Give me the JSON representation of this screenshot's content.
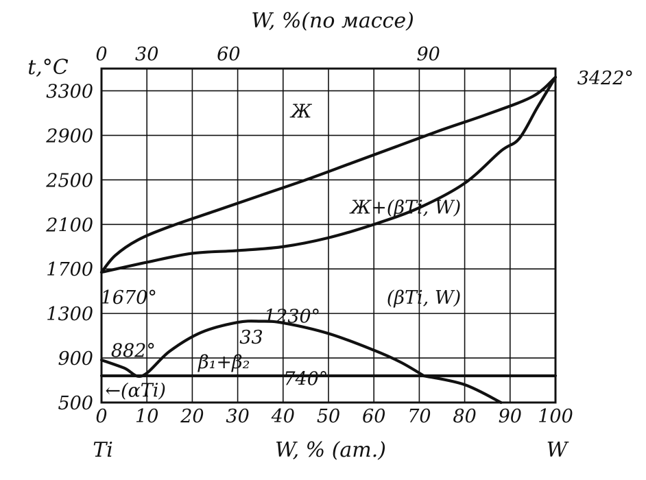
{
  "chart_data": {
    "type": "line",
    "title": "",
    "xlabel": "W, % (am.)",
    "ylabel": "t,°C",
    "top_xlabel": "W, %(по массе)",
    "xlim": [
      0,
      100
    ],
    "ylim": [
      500,
      3500
    ],
    "x_ticks": [
      "0",
      "10",
      "20",
      "30",
      "40",
      "50",
      "60",
      "70",
      "80",
      "90",
      "100"
    ],
    "y_ticks": [
      "500",
      "900",
      "1300",
      "1700",
      "2100",
      "2500",
      "2900",
      "3300"
    ],
    "top_ticks": [
      {
        "label": "0",
        "at_atomic": 0
      },
      {
        "label": "30",
        "at_atomic": 10
      },
      {
        "label": "60",
        "at_atomic": 28
      },
      {
        "label": "90",
        "at_atomic": 72
      }
    ],
    "left_element": "Ti",
    "right_element": "W",
    "grid": true,
    "series": [
      {
        "points": [
          [
            0,
            1670
          ],
          [
            3,
            1820
          ],
          [
            8,
            1960
          ],
          [
            15,
            2080
          ],
          [
            25,
            2220
          ],
          [
            35,
            2360
          ],
          [
            45,
            2500
          ],
          [
            55,
            2650
          ],
          [
            65,
            2800
          ],
          [
            75,
            2950
          ],
          [
            85,
            3090
          ],
          [
            95,
            3250
          ],
          [
            100,
            3422
          ]
        ]
      },
      {
        "points": [
          [
            0,
            1670
          ],
          [
            10,
            1760
          ],
          [
            20,
            1840
          ],
          [
            30,
            1865
          ],
          [
            40,
            1900
          ],
          [
            50,
            1980
          ],
          [
            60,
            2100
          ],
          [
            70,
            2250
          ],
          [
            80,
            2470
          ],
          [
            88,
            2760
          ],
          [
            92,
            2870
          ],
          [
            96,
            3150
          ],
          [
            100,
            3422
          ]
        ]
      },
      {
        "points": [
          [
            0,
            882
          ],
          [
            5,
            810
          ],
          [
            9,
            740
          ],
          [
            15,
            960
          ],
          [
            22,
            1130
          ],
          [
            30,
            1220
          ],
          [
            35,
            1230
          ],
          [
            40,
            1215
          ],
          [
            50,
            1120
          ],
          [
            60,
            970
          ],
          [
            66,
            860
          ],
          [
            71,
            740
          ]
        ]
      },
      {
        "points": [
          [
            71,
            740
          ],
          [
            80,
            660
          ],
          [
            88,
            500
          ]
        ]
      },
      {
        "points": [
          [
            0,
            740
          ],
          [
            100,
            740
          ]
        ]
      }
    ],
    "annotations": [
      {
        "text": "Ж",
        "x": 44,
        "y": 3120
      },
      {
        "text": "Ж+(βTi, W)",
        "x": 67,
        "y": 2260
      },
      {
        "text": "(βTi, W)",
        "x": 71,
        "y": 1450
      },
      {
        "text": "1670°",
        "x": 6,
        "y": 1450
      },
      {
        "text": "1230°",
        "x": 42,
        "y": 1280
      },
      {
        "text": "33",
        "x": 33,
        "y": 1090
      },
      {
        "text": "β₁+β₂",
        "x": 27,
        "y": 870
      },
      {
        "text": "882°",
        "x": 7,
        "y": 970
      },
      {
        "text": "740°",
        "x": 45,
        "y": 720
      },
      {
        "text": "←(αTi)",
        "x": 7.5,
        "y": 615
      },
      {
        "text": "3422°",
        "x": 111,
        "y": 3420
      }
    ]
  }
}
